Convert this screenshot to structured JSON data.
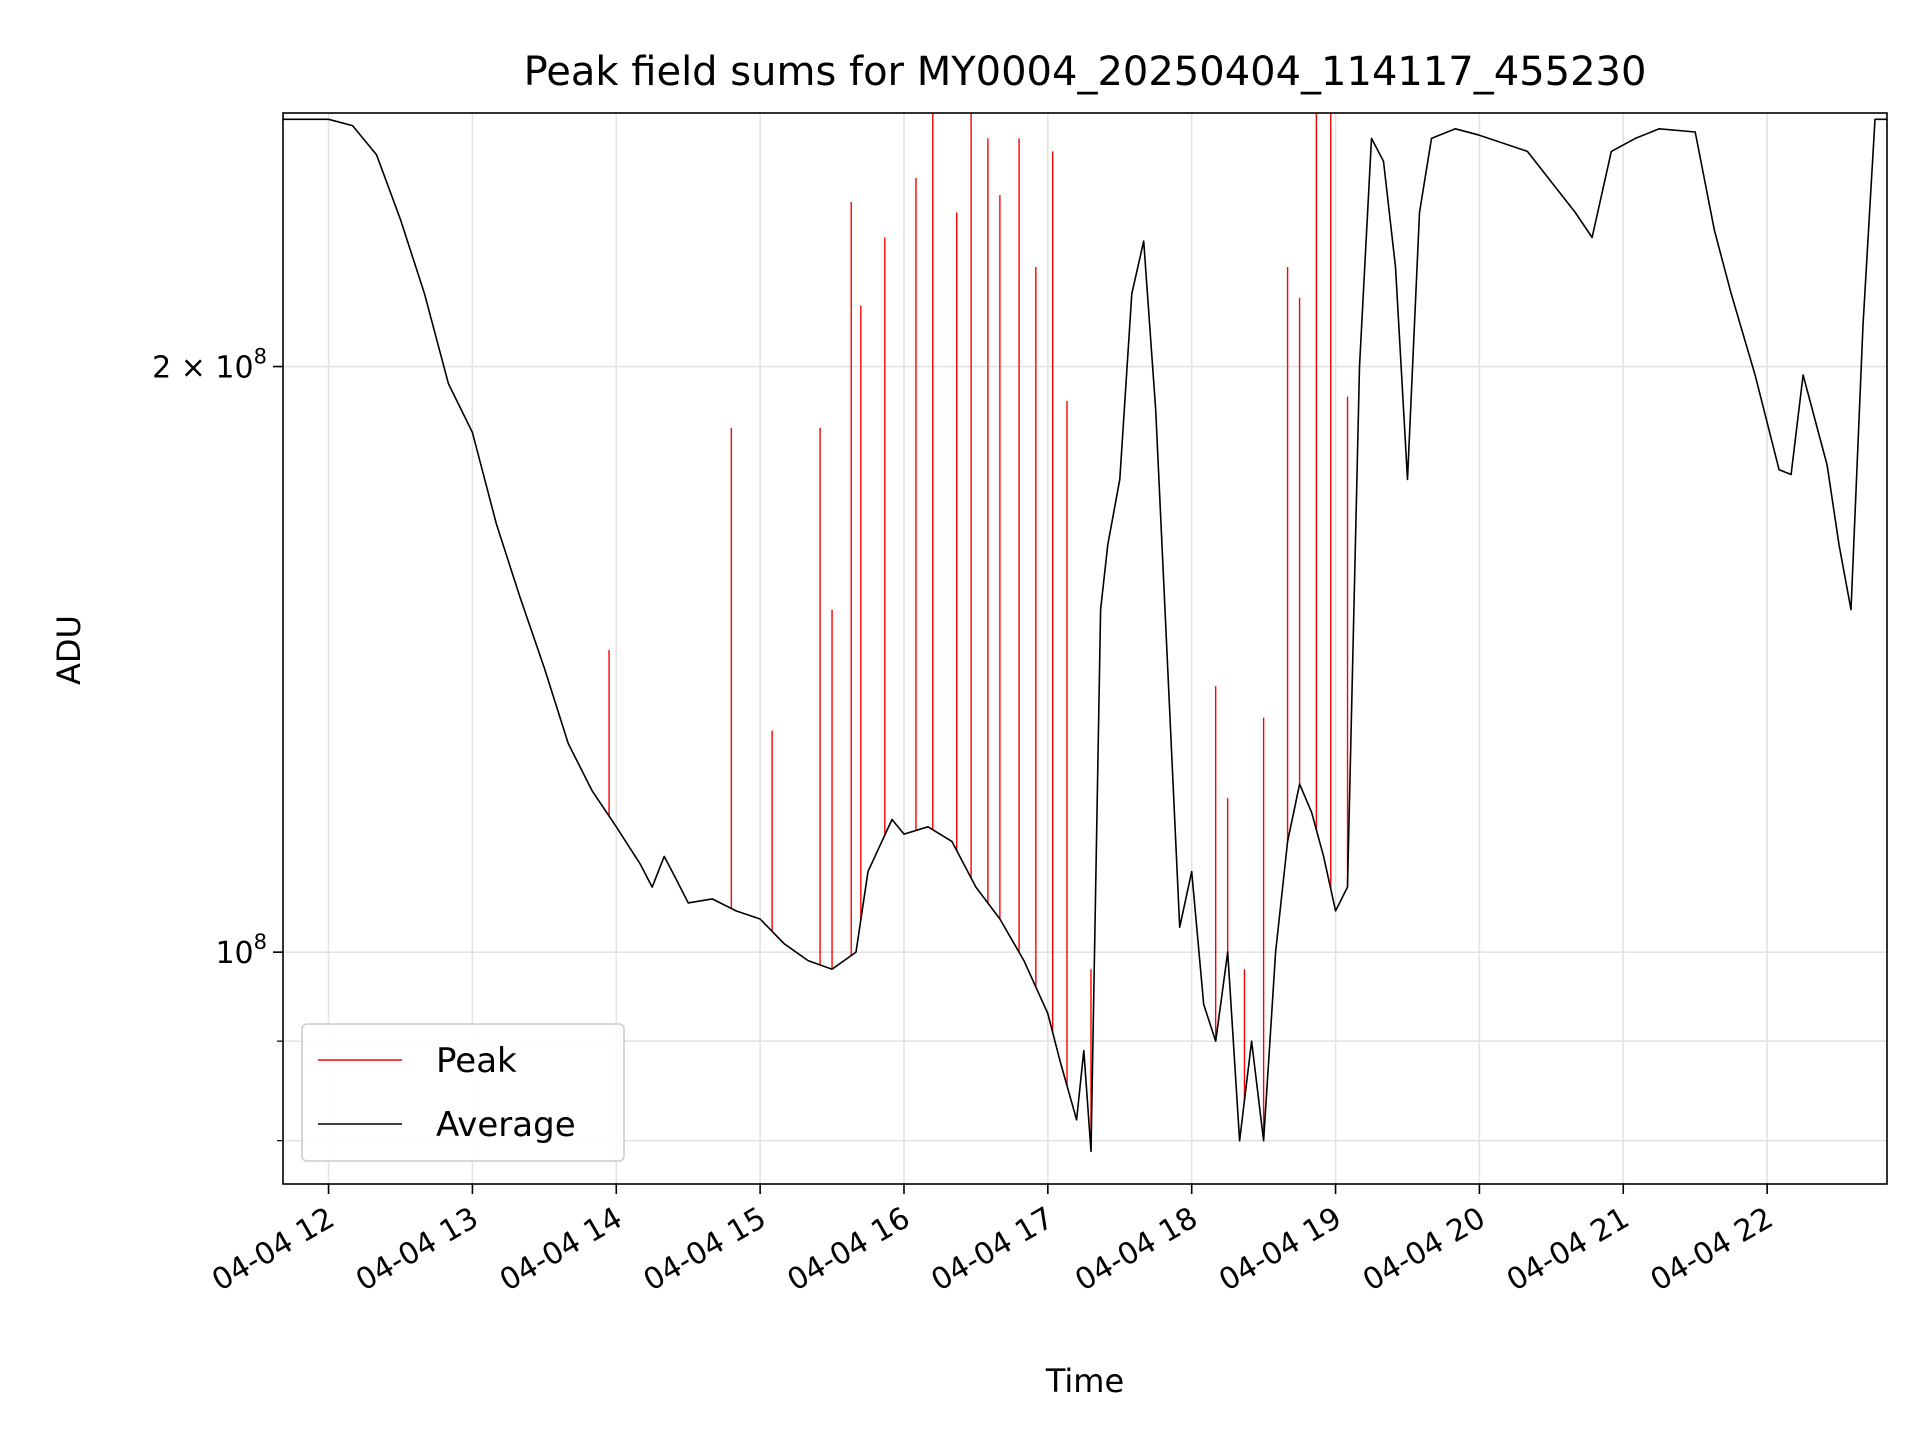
{
  "chart_data": {
    "type": "line",
    "title": "Peak field sums for MY0004_20250404_114117_455230",
    "xlabel": "Time",
    "ylabel": "ADU",
    "yscale": "log",
    "ylim": [
      76000000,
      270000000
    ],
    "xlim": [
      "2025-04-04 11:41",
      "2025-04-04 22:50"
    ],
    "grid": true,
    "legend_position": "lower-left",
    "x_ticks": [
      "04-04 12",
      "04-04 13",
      "04-04 14",
      "04-04 15",
      "04-04 16",
      "04-04 17",
      "04-04 18",
      "04-04 19",
      "04-04 20",
      "04-04 21",
      "04-04 22"
    ],
    "y_ticks": [
      {
        "value": 100000000,
        "base": "10",
        "exp": "8",
        "coef": ""
      },
      {
        "value": 200000000,
        "base": "10",
        "exp": "8",
        "coef": "2 × "
      }
    ],
    "y_minor_ticks": [
      90000000,
      80000000
    ],
    "series": [
      {
        "name": "Peak",
        "color": "#ff0000",
        "x": [
          "2025-04-04 13:57",
          "2025-04-04 14:48",
          "2025-04-04 15:05",
          "2025-04-04 15:25",
          "2025-04-04 15:30",
          "2025-04-04 15:38",
          "2025-04-04 15:42",
          "2025-04-04 15:52",
          "2025-04-04 16:05",
          "2025-04-04 16:12",
          "2025-04-04 16:22",
          "2025-04-04 16:28",
          "2025-04-04 16:35",
          "2025-04-04 16:40",
          "2025-04-04 16:48",
          "2025-04-04 16:55",
          "2025-04-04 17:02",
          "2025-04-04 17:08",
          "2025-04-04 17:18",
          "2025-04-04 18:10",
          "2025-04-04 18:15",
          "2025-04-04 18:22",
          "2025-04-04 18:30",
          "2025-04-04 18:40",
          "2025-04-04 18:45",
          "2025-04-04 18:52",
          "2025-04-04 18:58",
          "2025-04-04 19:05"
        ],
        "values": [
          143000000,
          186000000,
          130000000,
          186000000,
          150000000,
          243000000,
          215000000,
          233000000,
          250000000,
          270000000,
          240000000,
          270000000,
          262000000,
          245000000,
          262000000,
          225000000,
          258000000,
          192000000,
          98000000,
          137000000,
          120000000,
          98000000,
          132000000,
          225000000,
          217000000,
          270000000,
          270000000,
          193000000
        ]
      },
      {
        "name": "Average",
        "color": "#000000",
        "x": [
          "2025-04-04 11:41",
          "2025-04-04 12:00",
          "2025-04-04 12:10",
          "2025-04-04 12:20",
          "2025-04-04 12:30",
          "2025-04-04 12:40",
          "2025-04-04 12:50",
          "2025-04-04 13:00",
          "2025-04-04 13:10",
          "2025-04-04 13:20",
          "2025-04-04 13:30",
          "2025-04-04 13:40",
          "2025-04-04 13:50",
          "2025-04-04 14:00",
          "2025-04-04 14:10",
          "2025-04-04 14:15",
          "2025-04-04 14:20",
          "2025-04-04 14:25",
          "2025-04-04 14:30",
          "2025-04-04 14:40",
          "2025-04-04 14:50",
          "2025-04-04 15:00",
          "2025-04-04 15:10",
          "2025-04-04 15:20",
          "2025-04-04 15:30",
          "2025-04-04 15:40",
          "2025-04-04 15:45",
          "2025-04-04 15:55",
          "2025-04-04 16:00",
          "2025-04-04 16:10",
          "2025-04-04 16:20",
          "2025-04-04 16:30",
          "2025-04-04 16:40",
          "2025-04-04 16:50",
          "2025-04-04 17:00",
          "2025-04-04 17:05",
          "2025-04-04 17:12",
          "2025-04-04 17:15",
          "2025-04-04 17:18",
          "2025-04-04 17:22",
          "2025-04-04 17:25",
          "2025-04-04 17:30",
          "2025-04-04 17:35",
          "2025-04-04 17:40",
          "2025-04-04 17:45",
          "2025-04-04 17:50",
          "2025-04-04 17:55",
          "2025-04-04 18:00",
          "2025-04-04 18:05",
          "2025-04-04 18:10",
          "2025-04-04 18:15",
          "2025-04-04 18:20",
          "2025-04-04 18:25",
          "2025-04-04 18:30",
          "2025-04-04 18:35",
          "2025-04-04 18:40",
          "2025-04-04 18:45",
          "2025-04-04 18:50",
          "2025-04-04 18:55",
          "2025-04-04 19:00",
          "2025-04-04 19:05",
          "2025-04-04 19:10",
          "2025-04-04 19:15",
          "2025-04-04 19:20",
          "2025-04-04 19:25",
          "2025-04-04 19:30",
          "2025-04-04 19:35",
          "2025-04-04 19:40",
          "2025-04-04 19:50",
          "2025-04-04 20:00",
          "2025-04-04 20:20",
          "2025-04-04 20:40",
          "2025-04-04 20:47",
          "2025-04-04 20:55",
          "2025-04-04 21:05",
          "2025-04-04 21:15",
          "2025-04-04 21:30",
          "2025-04-04 21:38",
          "2025-04-04 21:45",
          "2025-04-04 21:55",
          "2025-04-04 22:05",
          "2025-04-04 22:10",
          "2025-04-04 22:15",
          "2025-04-04 22:25",
          "2025-04-04 22:30",
          "2025-04-04 22:35",
          "2025-04-04 22:40",
          "2025-04-04 22:45",
          "2025-04-04 22:50"
        ],
        "values": [
          268000000,
          268000000,
          266000000,
          257000000,
          238000000,
          218000000,
          196000000,
          185000000,
          166000000,
          152000000,
          140000000,
          128000000,
          121000000,
          116000000,
          111000000,
          108000000,
          112000000,
          109000000,
          106000000,
          106500000,
          105000000,
          104000000,
          101000000,
          99000000,
          98000000,
          100000000,
          110000000,
          117000000,
          115000000,
          116000000,
          114000000,
          108000000,
          104000000,
          99000000,
          93000000,
          88000000,
          82000000,
          89000000,
          79000000,
          150000000,
          162000000,
          175000000,
          218000000,
          232000000,
          190000000,
          140000000,
          103000000,
          110000000,
          94000000,
          90000000,
          100000000,
          80000000,
          90000000,
          80000000,
          100000000,
          114000000,
          122000000,
          118000000,
          112000000,
          105000000,
          108000000,
          200000000,
          262000000,
          255000000,
          225000000,
          175000000,
          240000000,
          262000000,
          265000000,
          263000000,
          258000000,
          240000000,
          233000000,
          258000000,
          262000000,
          265000000,
          264000000,
          235000000,
          218000000,
          198000000,
          177000000,
          176000000,
          198000000,
          178000000,
          162000000,
          150000000,
          210000000,
          268000000,
          268000000
        ]
      }
    ]
  }
}
